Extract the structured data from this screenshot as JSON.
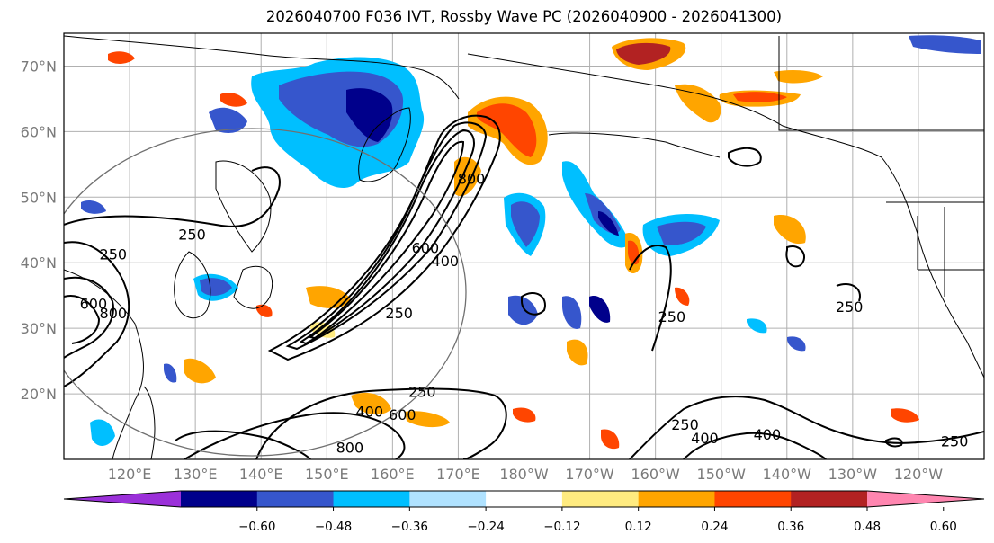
{
  "title": "2026040700 F036 IVT, Rossby Wave PC (2026040900 - 2026041300)",
  "map": {
    "lon_range": [
      110,
      250
    ],
    "lat_range": [
      10,
      75
    ],
    "lat_ticks": [
      {
        "value": 70,
        "label": "70°N"
      },
      {
        "value": 60,
        "label": "60°N"
      },
      {
        "value": 50,
        "label": "50°N"
      },
      {
        "value": 40,
        "label": "40°N"
      },
      {
        "value": 30,
        "label": "30°N"
      },
      {
        "value": 20,
        "label": "20°N"
      }
    ],
    "lon_ticks": [
      {
        "value": 120,
        "label": "120°E"
      },
      {
        "value": 130,
        "label": "130°E"
      },
      {
        "value": 140,
        "label": "140°E"
      },
      {
        "value": 150,
        "label": "150°E"
      },
      {
        "value": 160,
        "label": "160°E"
      },
      {
        "value": 170,
        "label": "170°E"
      },
      {
        "value": 180,
        "label": "180°W"
      },
      {
        "value": 190,
        "label": "170°W"
      },
      {
        "value": 200,
        "label": "160°W"
      },
      {
        "value": 210,
        "label": "150°W"
      },
      {
        "value": 220,
        "label": "140°W"
      },
      {
        "value": 230,
        "label": "130°W"
      },
      {
        "value": 240,
        "label": "120°W"
      }
    ],
    "gridlines": true,
    "ivt_contour_levels": [
      250,
      400,
      600,
      800
    ],
    "contour_labels": [
      {
        "text": "250",
        "lon": 129.5,
        "lat": 43.5
      },
      {
        "text": "250",
        "lon": 117.5,
        "lat": 40.5
      },
      {
        "text": "600",
        "lon": 114.5,
        "lat": 33
      },
      {
        "text": "800",
        "lon": 117.5,
        "lat": 31.5
      },
      {
        "text": "250",
        "lon": 161,
        "lat": 31.5
      },
      {
        "text": "600",
        "lon": 165,
        "lat": 41.5
      },
      {
        "text": "400",
        "lon": 168,
        "lat": 39.5
      },
      {
        "text": "800",
        "lon": 172,
        "lat": 52
      },
      {
        "text": "250",
        "lon": 202.5,
        "lat": 31
      },
      {
        "text": "250",
        "lon": 229.5,
        "lat": 32.5
      },
      {
        "text": "250",
        "lon": 164.5,
        "lat": 19.5
      },
      {
        "text": "400",
        "lon": 156.5,
        "lat": 16.5
      },
      {
        "text": "600",
        "lon": 161.5,
        "lat": 16
      },
      {
        "text": "800",
        "lon": 153.5,
        "lat": 11
      },
      {
        "text": "250",
        "lon": 204.5,
        "lat": 14.5
      },
      {
        "text": "400",
        "lon": 207.5,
        "lat": 12.5
      },
      {
        "text": "400",
        "lon": 217,
        "lat": 13
      },
      {
        "text": "250",
        "lon": 245.5,
        "lat": 12
      }
    ]
  },
  "colorbar": {
    "colors": [
      "#9b30d9",
      "#00008b",
      "#3656cc",
      "#00bfff",
      "#b0e2ff",
      "#ffffff",
      "#ffeb80",
      "#ffa500",
      "#ff4500",
      "#b22222",
      "#ff86b0"
    ],
    "tick_labels": [
      "−0.60",
      "−0.48",
      "−0.36",
      "−0.24",
      "−0.12",
      "0.12",
      "0.24",
      "0.36",
      "0.48",
      "0.60"
    ]
  }
}
